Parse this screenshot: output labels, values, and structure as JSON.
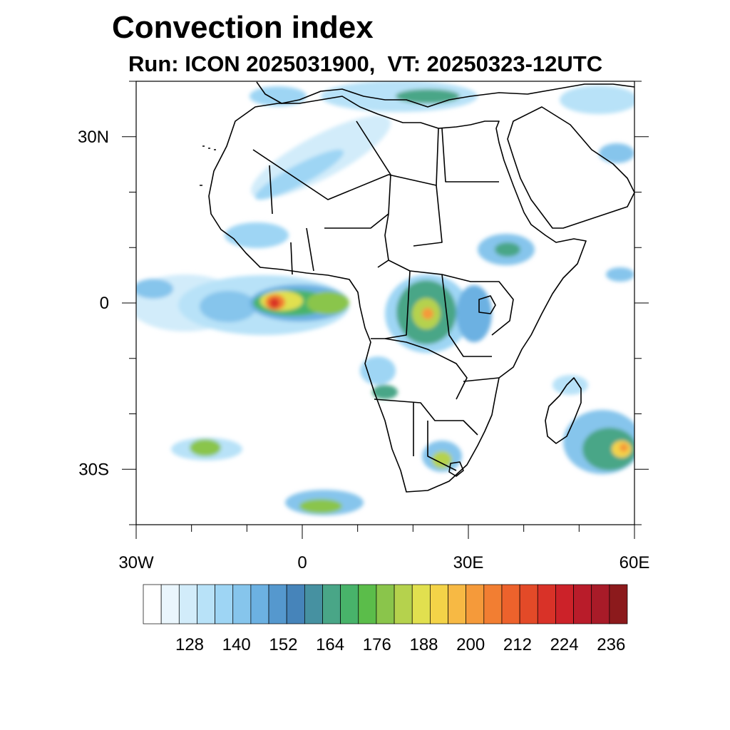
{
  "title": "Convection index",
  "subtitle": "Run: ICON 2025031900,  VT: 20250323-12UTC",
  "map": {
    "lat_axis_labels": [
      "30N",
      "0",
      "30S"
    ],
    "lon_axis_labels": [
      "30W",
      "0",
      "30E",
      "60E"
    ],
    "lat_axis_values": [
      30,
      0,
      -30
    ],
    "lon_axis_values": [
      -30,
      0,
      30,
      60
    ],
    "extent": {
      "lon_min": -30,
      "lon_max": 60,
      "lat_min": -40,
      "lat_max": 40
    },
    "coastline_color": "#000000",
    "features": {
      "continent": "Africa",
      "max_convection_region": "Gulf of Guinea / Equatorial Atlantic near 0°N 5°W",
      "secondary_regions": [
        "Congo Basin",
        "Madagascar east coast",
        "South Atlantic 30S-38S"
      ]
    }
  },
  "colorbar": {
    "tick_labels": [
      "128",
      "140",
      "152",
      "164",
      "176",
      "188",
      "200",
      "212",
      "224",
      "236"
    ],
    "colors": [
      "#ffffff",
      "#eaf6fd",
      "#d2ecfa",
      "#b8e2f8",
      "#9ed5f4",
      "#86c5ec",
      "#6cb1e2",
      "#5598ce",
      "#4684ba",
      "#4691a1",
      "#49a687",
      "#48b36a",
      "#5bbd4a",
      "#8ac54b",
      "#b5d24d",
      "#e1e04f",
      "#f4d348",
      "#f7b944",
      "#f59a3a",
      "#f27e32",
      "#ed622c",
      "#e34a28",
      "#d93228",
      "#cc2229",
      "#b91c2a",
      "#a81b28",
      "#8c1a1c"
    ]
  },
  "chart_data": {
    "type": "heatmap",
    "title": "Convection index",
    "subtitle": "Run: ICON 2025031900,  VT: 20250323-12UTC",
    "xlabel": "",
    "ylabel": "",
    "xlim": [
      -30,
      60
    ],
    "ylim": [
      -40,
      40
    ],
    "x_ticks": [
      "30W",
      "0",
      "30E",
      "60E"
    ],
    "y_ticks": [
      "30N",
      "0",
      "30S"
    ],
    "colorbar_ticks": [
      128,
      140,
      152,
      164,
      176,
      188,
      200,
      212,
      224,
      236
    ],
    "value_range": [
      116,
      242
    ],
    "grid": false
  }
}
